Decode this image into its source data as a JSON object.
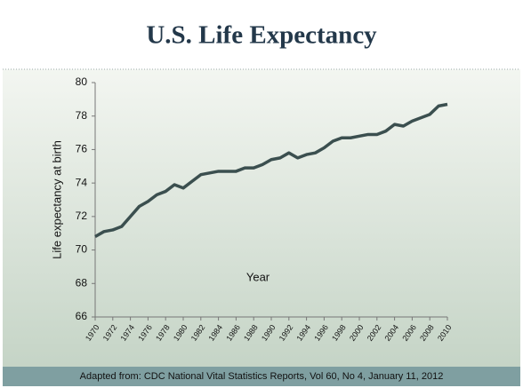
{
  "chart_data": {
    "type": "line",
    "title": "U.S. Life Expectancy",
    "x_label": "Year",
    "y_label": "Life expectancy at birth",
    "source": "Adapted from: CDC National Vital Statistics Reports, Vol 60, No 4,  January 11, 2012",
    "x": [
      1970,
      1971,
      1972,
      1973,
      1974,
      1975,
      1976,
      1977,
      1978,
      1979,
      1980,
      1981,
      1982,
      1983,
      1984,
      1985,
      1986,
      1987,
      1988,
      1989,
      1990,
      1991,
      1992,
      1993,
      1994,
      1995,
      1996,
      1997,
      1998,
      1999,
      2000,
      2001,
      2002,
      2003,
      2004,
      2005,
      2006,
      2007,
      2008,
      2009,
      2010
    ],
    "series": [
      {
        "color": "#3b4f4f",
        "values": [
          70.8,
          71.1,
          71.2,
          71.4,
          72.0,
          72.6,
          72.9,
          73.3,
          73.5,
          73.9,
          73.7,
          74.1,
          74.5,
          74.6,
          74.7,
          74.7,
          74.7,
          74.9,
          74.9,
          75.1,
          75.4,
          75.5,
          75.8,
          75.5,
          75.7,
          75.8,
          76.1,
          76.5,
          76.7,
          76.7,
          76.8,
          76.9,
          76.9,
          77.1,
          77.5,
          77.4,
          77.7,
          77.9,
          78.1,
          78.6,
          78.7
        ]
      }
    ],
    "xlim": [
      1970,
      2010
    ],
    "xticks": [
      1970,
      1972,
      1974,
      1976,
      1978,
      1980,
      1982,
      1984,
      1986,
      1988,
      1990,
      1992,
      1994,
      1996,
      1998,
      2000,
      2002,
      2004,
      2006,
      2008,
      2010
    ],
    "ylim": [
      66,
      80
    ],
    "yticks": [
      66,
      68,
      70,
      72,
      74,
      76,
      78,
      80
    ],
    "grid": false
  }
}
